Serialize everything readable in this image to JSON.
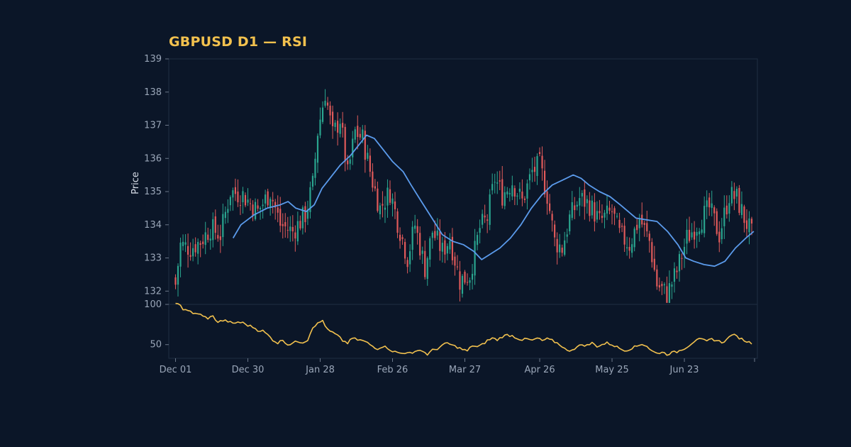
{
  "chart_data": {
    "type": "candlestick",
    "title": "GBPUSD D1 — RSI",
    "ylabel": "Price",
    "xlabel": "",
    "price_ylim": [
      131.6,
      139.0
    ],
    "price_yticks": [
      132,
      133,
      134,
      135,
      136,
      137,
      138,
      139
    ],
    "rsi_ylim": [
      33,
      100
    ],
    "rsi_yticks": [
      50,
      100
    ],
    "x_tick_labels": [
      "Dec 01",
      "Dec 30",
      "Jan 28",
      "Feb 26",
      "Mar 27",
      "Apr 26",
      "May 25",
      "Jun 23"
    ],
    "x_tick_days": [
      0,
      29,
      58,
      87,
      116,
      146,
      175,
      204
    ],
    "days": 232,
    "close_anchors": [
      [
        0,
        132.2
      ],
      [
        2,
        133.4
      ],
      [
        6,
        133.3
      ],
      [
        10,
        133.5
      ],
      [
        14,
        133.9
      ],
      [
        18,
        133.7
      ],
      [
        22,
        135.0
      ],
      [
        27,
        134.9
      ],
      [
        33,
        134.4
      ],
      [
        38,
        135.0
      ],
      [
        42,
        134.0
      ],
      [
        47,
        133.8
      ],
      [
        52,
        134.3
      ],
      [
        55,
        135.2
      ],
      [
        57,
        136.8
      ],
      [
        60,
        138.0
      ],
      [
        63,
        136.7
      ],
      [
        66,
        137.2
      ],
      [
        69,
        135.5
      ],
      [
        72,
        136.8
      ],
      [
        75,
        136.6
      ],
      [
        79,
        135.3
      ],
      [
        82,
        134.5
      ],
      [
        86,
        135.0
      ],
      [
        89,
        134.1
      ],
      [
        93,
        133.0
      ],
      [
        96,
        134.0
      ],
      [
        100,
        132.7
      ],
      [
        103,
        133.8
      ],
      [
        107,
        133.2
      ],
      [
        110,
        133.6
      ],
      [
        114,
        132.3
      ],
      [
        118,
        132.5
      ],
      [
        122,
        133.9
      ],
      [
        125,
        134.2
      ],
      [
        128,
        135.4
      ],
      [
        131,
        134.9
      ],
      [
        135,
        135.3
      ],
      [
        139,
        134.7
      ],
      [
        143,
        135.6
      ],
      [
        146,
        135.8
      ],
      [
        149,
        134.9
      ],
      [
        152,
        133.5
      ],
      [
        155,
        133.3
      ],
      [
        158,
        134.2
      ],
      [
        162,
        134.8
      ],
      [
        166,
        134.6
      ],
      [
        170,
        134.1
      ],
      [
        175,
        134.4
      ],
      [
        178,
        133.7
      ],
      [
        182,
        133.4
      ],
      [
        186,
        134.2
      ],
      [
        190,
        133.5
      ],
      [
        193,
        132.2
      ],
      [
        197,
        131.9
      ],
      [
        201,
        132.6
      ],
      [
        205,
        133.6
      ],
      [
        210,
        134.1
      ],
      [
        214,
        134.5
      ],
      [
        218,
        133.7
      ],
      [
        222,
        134.9
      ],
      [
        225,
        134.8
      ],
      [
        228,
        134.2
      ],
      [
        231,
        133.7
      ]
    ],
    "sma": {
      "period": 20,
      "color": "#5b9bec",
      "points": [
        [
          22,
          133.6
        ],
        [
          25,
          134.0
        ],
        [
          30,
          134.3
        ],
        [
          35,
          134.5
        ],
        [
          40,
          134.6
        ],
        [
          43,
          134.7
        ],
        [
          46,
          134.5
        ],
        [
          50,
          134.4
        ],
        [
          53,
          134.6
        ],
        [
          56,
          135.1
        ],
        [
          60,
          135.5
        ],
        [
          63,
          135.8
        ],
        [
          67,
          136.1
        ],
        [
          70,
          136.4
        ],
        [
          73,
          136.7
        ],
        [
          76,
          136.6
        ],
        [
          79,
          136.3
        ],
        [
          83,
          135.9
        ],
        [
          87,
          135.6
        ],
        [
          90,
          135.2
        ],
        [
          94,
          134.7
        ],
        [
          98,
          134.2
        ],
        [
          102,
          133.7
        ],
        [
          106,
          133.5
        ],
        [
          110,
          133.4
        ],
        [
          114,
          133.2
        ],
        [
          117,
          132.95
        ],
        [
          120,
          133.1
        ],
        [
          124,
          133.3
        ],
        [
          128,
          133.6
        ],
        [
          132,
          134.0
        ],
        [
          136,
          134.5
        ],
        [
          140,
          134.9
        ],
        [
          144,
          135.2
        ],
        [
          148,
          135.35
        ],
        [
          152,
          135.5
        ],
        [
          155,
          135.4
        ],
        [
          158,
          135.2
        ],
        [
          162,
          135.0
        ],
        [
          166,
          134.85
        ],
        [
          170,
          134.6
        ],
        [
          173,
          134.4
        ],
        [
          176,
          134.2
        ],
        [
          180,
          134.15
        ],
        [
          184,
          134.1
        ],
        [
          188,
          133.8
        ],
        [
          192,
          133.4
        ],
        [
          195,
          133.0
        ],
        [
          198,
          132.9
        ],
        [
          202,
          132.8
        ],
        [
          206,
          132.75
        ],
        [
          210,
          132.9
        ],
        [
          214,
          133.3
        ],
        [
          218,
          133.6
        ],
        [
          221,
          133.8
        ]
      ]
    },
    "rsi": {
      "color": "#f2c14e",
      "anchors": [
        [
          0,
          100
        ],
        [
          2,
          100
        ],
        [
          3,
          94
        ],
        [
          5,
          93
        ],
        [
          7,
          88
        ],
        [
          9,
          89
        ],
        [
          11,
          85
        ],
        [
          13,
          83
        ],
        [
          15,
          85
        ],
        [
          17,
          78
        ],
        [
          19,
          80
        ],
        [
          21,
          79
        ],
        [
          23,
          76
        ],
        [
          25,
          78
        ],
        [
          27,
          77
        ],
        [
          29,
          74
        ],
        [
          31,
          72
        ],
        [
          33,
          68
        ],
        [
          35,
          67
        ],
        [
          37,
          62
        ],
        [
          39,
          56
        ],
        [
          41,
          52
        ],
        [
          43,
          56
        ],
        [
          45,
          50
        ],
        [
          47,
          52
        ],
        [
          49,
          54
        ],
        [
          51,
          53
        ],
        [
          53,
          56
        ],
        [
          55,
          72
        ],
        [
          57,
          76
        ],
        [
          59,
          80
        ],
        [
          61,
          68
        ],
        [
          63,
          65
        ],
        [
          65,
          61
        ],
        [
          67,
          55
        ],
        [
          69,
          52
        ],
        [
          71,
          58
        ],
        [
          73,
          56
        ],
        [
          75,
          55
        ],
        [
          77,
          52
        ],
        [
          79,
          48
        ],
        [
          81,
          45
        ],
        [
          83,
          48
        ],
        [
          85,
          46
        ],
        [
          87,
          42
        ],
        [
          89,
          40
        ],
        [
          91,
          39
        ],
        [
          93,
          41
        ],
        [
          95,
          38
        ],
        [
          97,
          44
        ],
        [
          99,
          42
        ],
        [
          101,
          38
        ],
        [
          103,
          43
        ],
        [
          105,
          45
        ],
        [
          107,
          49
        ],
        [
          109,
          52
        ],
        [
          111,
          49
        ],
        [
          113,
          47
        ],
        [
          115,
          44
        ],
        [
          117,
          42
        ],
        [
          119,
          49
        ],
        [
          121,
          47
        ],
        [
          123,
          50
        ],
        [
          125,
          55
        ],
        [
          127,
          58
        ],
        [
          129,
          56
        ],
        [
          131,
          60
        ],
        [
          133,
          62
        ],
        [
          135,
          61
        ],
        [
          137,
          58
        ],
        [
          139,
          56
        ],
        [
          141,
          57
        ],
        [
          143,
          55
        ],
        [
          145,
          58
        ],
        [
          147,
          55
        ],
        [
          149,
          57
        ],
        [
          151,
          55
        ],
        [
          153,
          52
        ],
        [
          155,
          48
        ],
        [
          157,
          42
        ],
        [
          159,
          44
        ],
        [
          161,
          47
        ],
        [
          163,
          50
        ],
        [
          165,
          49
        ],
        [
          167,
          52
        ],
        [
          169,
          48
        ],
        [
          171,
          50
        ],
        [
          173,
          52
        ],
        [
          175,
          50
        ],
        [
          177,
          47
        ],
        [
          179,
          44
        ],
        [
          181,
          43
        ],
        [
          183,
          46
        ],
        [
          185,
          48
        ],
        [
          187,
          51
        ],
        [
          189,
          48
        ],
        [
          191,
          42
        ],
        [
          193,
          39
        ],
        [
          195,
          41
        ],
        [
          197,
          38
        ],
        [
          199,
          40
        ],
        [
          201,
          41
        ],
        [
          203,
          44
        ],
        [
          205,
          47
        ],
        [
          207,
          52
        ],
        [
          209,
          57
        ],
        [
          211,
          56
        ],
        [
          213,
          54
        ],
        [
          215,
          57
        ],
        [
          217,
          55
        ],
        [
          219,
          53
        ],
        [
          221,
          56
        ],
        [
          223,
          63
        ],
        [
          225,
          60
        ],
        [
          227,
          57
        ],
        [
          229,
          54
        ],
        [
          231,
          52
        ]
      ]
    },
    "colors": {
      "background": "#0b1628",
      "up": "#2aa58f",
      "down": "#e05a5a",
      "frame": "#1f2d42",
      "title": "#f2c14e"
    }
  }
}
